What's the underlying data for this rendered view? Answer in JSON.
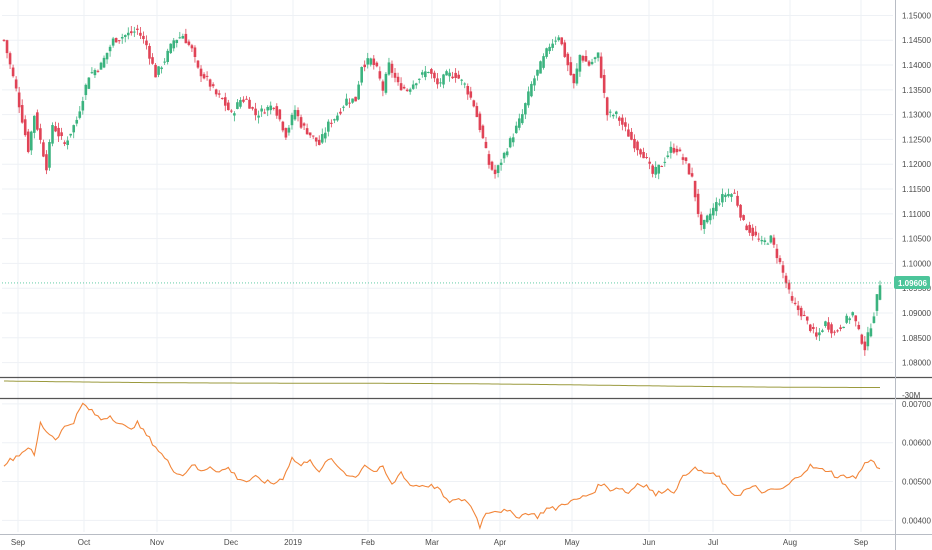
{
  "colors": {
    "up": "#26a69a",
    "up_fill": "#3bb37f",
    "down": "#e04356",
    "grid": "#eef1f5",
    "pane_border": "#555555",
    "price_line": "#4cc59a",
    "indicator1": "#9b9a3e",
    "indicator2": "#f2863a",
    "axis_text": "#4a4a4a"
  },
  "chart_data": [
    {
      "type": "candlestick",
      "pane": "price",
      "x_labels": [
        "Sep",
        "Oct",
        "Nov",
        "Dec",
        "2019",
        "Feb",
        "Mar",
        "Apr",
        "May",
        "Jun",
        "Jul",
        "Aug",
        "Sep"
      ],
      "y_ticks": [
        "1.15000",
        "1.14500",
        "1.14000",
        "1.13500",
        "1.13000",
        "1.12500",
        "1.12000",
        "1.11500",
        "1.11000",
        "1.10500",
        "1.10000",
        "1.09500",
        "1.09000",
        "1.08500",
        "1.08000"
      ],
      "ylim": [
        1.0775,
        1.1515
      ],
      "last_price": 1.09606,
      "last_price_label": "1.09606",
      "anchors": [
        [
          0,
          1.145
        ],
        [
          4,
          1.135
        ],
        [
          8,
          1.123
        ],
        [
          10,
          1.13
        ],
        [
          14,
          1.1195
        ],
        [
          16,
          1.128
        ],
        [
          20,
          1.124
        ],
        [
          24,
          1.129
        ],
        [
          28,
          1.138
        ],
        [
          32,
          1.14
        ],
        [
          36,
          1.145
        ],
        [
          40,
          1.146
        ],
        [
          44,
          1.147
        ],
        [
          47,
          1.144
        ],
        [
          50,
          1.138
        ],
        [
          53,
          1.141
        ],
        [
          56,
          1.145
        ],
        [
          59,
          1.146
        ],
        [
          62,
          1.143
        ],
        [
          64,
          1.139
        ],
        [
          67,
          1.137
        ],
        [
          70,
          1.134
        ],
        [
          72,
          1.133
        ],
        [
          75,
          1.13
        ],
        [
          78,
          1.133
        ],
        [
          80,
          1.133
        ],
        [
          83,
          1.13
        ],
        [
          86,
          1.131
        ],
        [
          89,
          1.132
        ],
        [
          91,
          1.129
        ],
        [
          93,
          1.126
        ],
        [
          96,
          1.131
        ],
        [
          98,
          1.128
        ],
        [
          101,
          1.126
        ],
        [
          104,
          1.124
        ],
        [
          107,
          1.128
        ],
        [
          110,
          1.13
        ],
        [
          113,
          1.133
        ],
        [
          116,
          1.133
        ],
        [
          118,
          1.14
        ],
        [
          121,
          1.141
        ],
        [
          123,
          1.139
        ],
        [
          125,
          1.135
        ],
        [
          127,
          1.14
        ],
        [
          130,
          1.136
        ],
        [
          133,
          1.135
        ],
        [
          136,
          1.137
        ],
        [
          140,
          1.139
        ],
        [
          143,
          1.136
        ],
        [
          146,
          1.138
        ],
        [
          149,
          1.138
        ],
        [
          152,
          1.136
        ],
        [
          155,
          1.132
        ],
        [
          158,
          1.125
        ],
        [
          160,
          1.12
        ],
        [
          162,
          1.118
        ],
        [
          165,
          1.122
        ],
        [
          168,
          1.126
        ],
        [
          171,
          1.13
        ],
        [
          174,
          1.136
        ],
        [
          177,
          1.14
        ],
        [
          180,
          1.144
        ],
        [
          183,
          1.146
        ],
        [
          186,
          1.14
        ],
        [
          188,
          1.136
        ],
        [
          190,
          1.142
        ],
        [
          193,
          1.14
        ],
        [
          196,
          1.142
        ],
        [
          199,
          1.13
        ],
        [
          202,
          1.13
        ],
        [
          205,
          1.127
        ],
        [
          208,
          1.124
        ],
        [
          211,
          1.122
        ],
        [
          214,
          1.118
        ],
        [
          217,
          1.12
        ],
        [
          220,
          1.123
        ],
        [
          222,
          1.123
        ],
        [
          225,
          1.12
        ],
        [
          227,
          1.117
        ],
        [
          230,
          1.107
        ],
        [
          232,
          1.109
        ],
        [
          235,
          1.112
        ],
        [
          238,
          1.114
        ],
        [
          241,
          1.114
        ],
        [
          244,
          1.108
        ],
        [
          247,
          1.106
        ],
        [
          250,
          1.104
        ],
        [
          253,
          1.105
        ],
        [
          256,
          1.1
        ],
        [
          258,
          1.096
        ],
        [
          260,
          1.092
        ],
        [
          263,
          1.09
        ],
        [
          265,
          1.088
        ],
        [
          268,
          1.085
        ],
        [
          271,
          1.088
        ],
        [
          274,
          1.086
        ],
        [
          277,
          1.088
        ],
        [
          280,
          1.09
        ],
        [
          282,
          1.086
        ],
        [
          284,
          1.083
        ],
        [
          287,
          1.09
        ],
        [
          289,
          1.0961
        ]
      ]
    },
    {
      "type": "line",
      "pane": "indicator-1",
      "y_ticks": [
        "-30M"
      ],
      "series": [
        {
          "values_start": 1.0,
          "values_end": 0.55
        }
      ]
    },
    {
      "type": "line",
      "pane": "indicator-2",
      "y_ticks": [
        "0.00700",
        "0.00600",
        "0.00500",
        "0.00400"
      ],
      "ylim": [
        0.0037,
        0.0071
      ],
      "anchors": [
        [
          0,
          0.00545
        ],
        [
          3,
          0.0056
        ],
        [
          6,
          0.00575
        ],
        [
          8,
          0.0059
        ],
        [
          10,
          0.00565
        ],
        [
          12,
          0.0065
        ],
        [
          14,
          0.0063
        ],
        [
          17,
          0.0061
        ],
        [
          20,
          0.0064
        ],
        [
          23,
          0.00655
        ],
        [
          26,
          0.007
        ],
        [
          29,
          0.0068
        ],
        [
          32,
          0.0066
        ],
        [
          35,
          0.0067
        ],
        [
          38,
          0.0065
        ],
        [
          41,
          0.00635
        ],
        [
          44,
          0.0065
        ],
        [
          47,
          0.0062
        ],
        [
          50,
          0.0059
        ],
        [
          53,
          0.0056
        ],
        [
          56,
          0.0053
        ],
        [
          59,
          0.00515
        ],
        [
          62,
          0.00545
        ],
        [
          65,
          0.00525
        ],
        [
          68,
          0.0054
        ],
        [
          71,
          0.00525
        ],
        [
          74,
          0.00535
        ],
        [
          77,
          0.0051
        ],
        [
          80,
          0.005
        ],
        [
          83,
          0.0051
        ],
        [
          86,
          0.005
        ],
        [
          89,
          0.00495
        ],
        [
          92,
          0.0051
        ],
        [
          95,
          0.0056
        ],
        [
          98,
          0.0054
        ],
        [
          101,
          0.0056
        ],
        [
          104,
          0.0052
        ],
        [
          107,
          0.0056
        ],
        [
          110,
          0.0054
        ],
        [
          113,
          0.0052
        ],
        [
          116,
          0.0051
        ],
        [
          119,
          0.00545
        ],
        [
          122,
          0.00525
        ],
        [
          125,
          0.00535
        ],
        [
          128,
          0.0049
        ],
        [
          131,
          0.00525
        ],
        [
          134,
          0.0049
        ],
        [
          137,
          0.0049
        ],
        [
          140,
          0.0049
        ],
        [
          143,
          0.00485
        ],
        [
          146,
          0.0045
        ],
        [
          149,
          0.0045
        ],
        [
          152,
          0.00455
        ],
        [
          155,
          0.00425
        ],
        [
          157,
          0.00385
        ],
        [
          159,
          0.0042
        ],
        [
          161,
          0.00425
        ],
        [
          164,
          0.00425
        ],
        [
          167,
          0.0042
        ],
        [
          170,
          0.0041
        ],
        [
          173,
          0.0042
        ],
        [
          176,
          0.0041
        ],
        [
          179,
          0.0043
        ],
        [
          182,
          0.0043
        ],
        [
          185,
          0.00445
        ],
        [
          188,
          0.0045
        ],
        [
          191,
          0.0046
        ],
        [
          194,
          0.0047
        ],
        [
          197,
          0.00495
        ],
        [
          200,
          0.0048
        ],
        [
          203,
          0.00485
        ],
        [
          206,
          0.0047
        ],
        [
          209,
          0.00495
        ],
        [
          212,
          0.0049
        ],
        [
          215,
          0.00465
        ],
        [
          218,
          0.0048
        ],
        [
          221,
          0.00475
        ],
        [
          224,
          0.0051
        ],
        [
          227,
          0.00535
        ],
        [
          230,
          0.00525
        ],
        [
          233,
          0.0052
        ],
        [
          236,
          0.0051
        ],
        [
          239,
          0.00475
        ],
        [
          242,
          0.00465
        ],
        [
          245,
          0.0048
        ],
        [
          248,
          0.00485
        ],
        [
          251,
          0.0047
        ],
        [
          254,
          0.0048
        ],
        [
          257,
          0.0048
        ],
        [
          260,
          0.005
        ],
        [
          263,
          0.0052
        ],
        [
          266,
          0.0054
        ],
        [
          269,
          0.0053
        ],
        [
          272,
          0.0053
        ],
        [
          275,
          0.0051
        ],
        [
          278,
          0.00515
        ],
        [
          281,
          0.0051
        ],
        [
          284,
          0.00545
        ],
        [
          286,
          0.0056
        ],
        [
          288,
          0.00535
        ]
      ]
    }
  ]
}
